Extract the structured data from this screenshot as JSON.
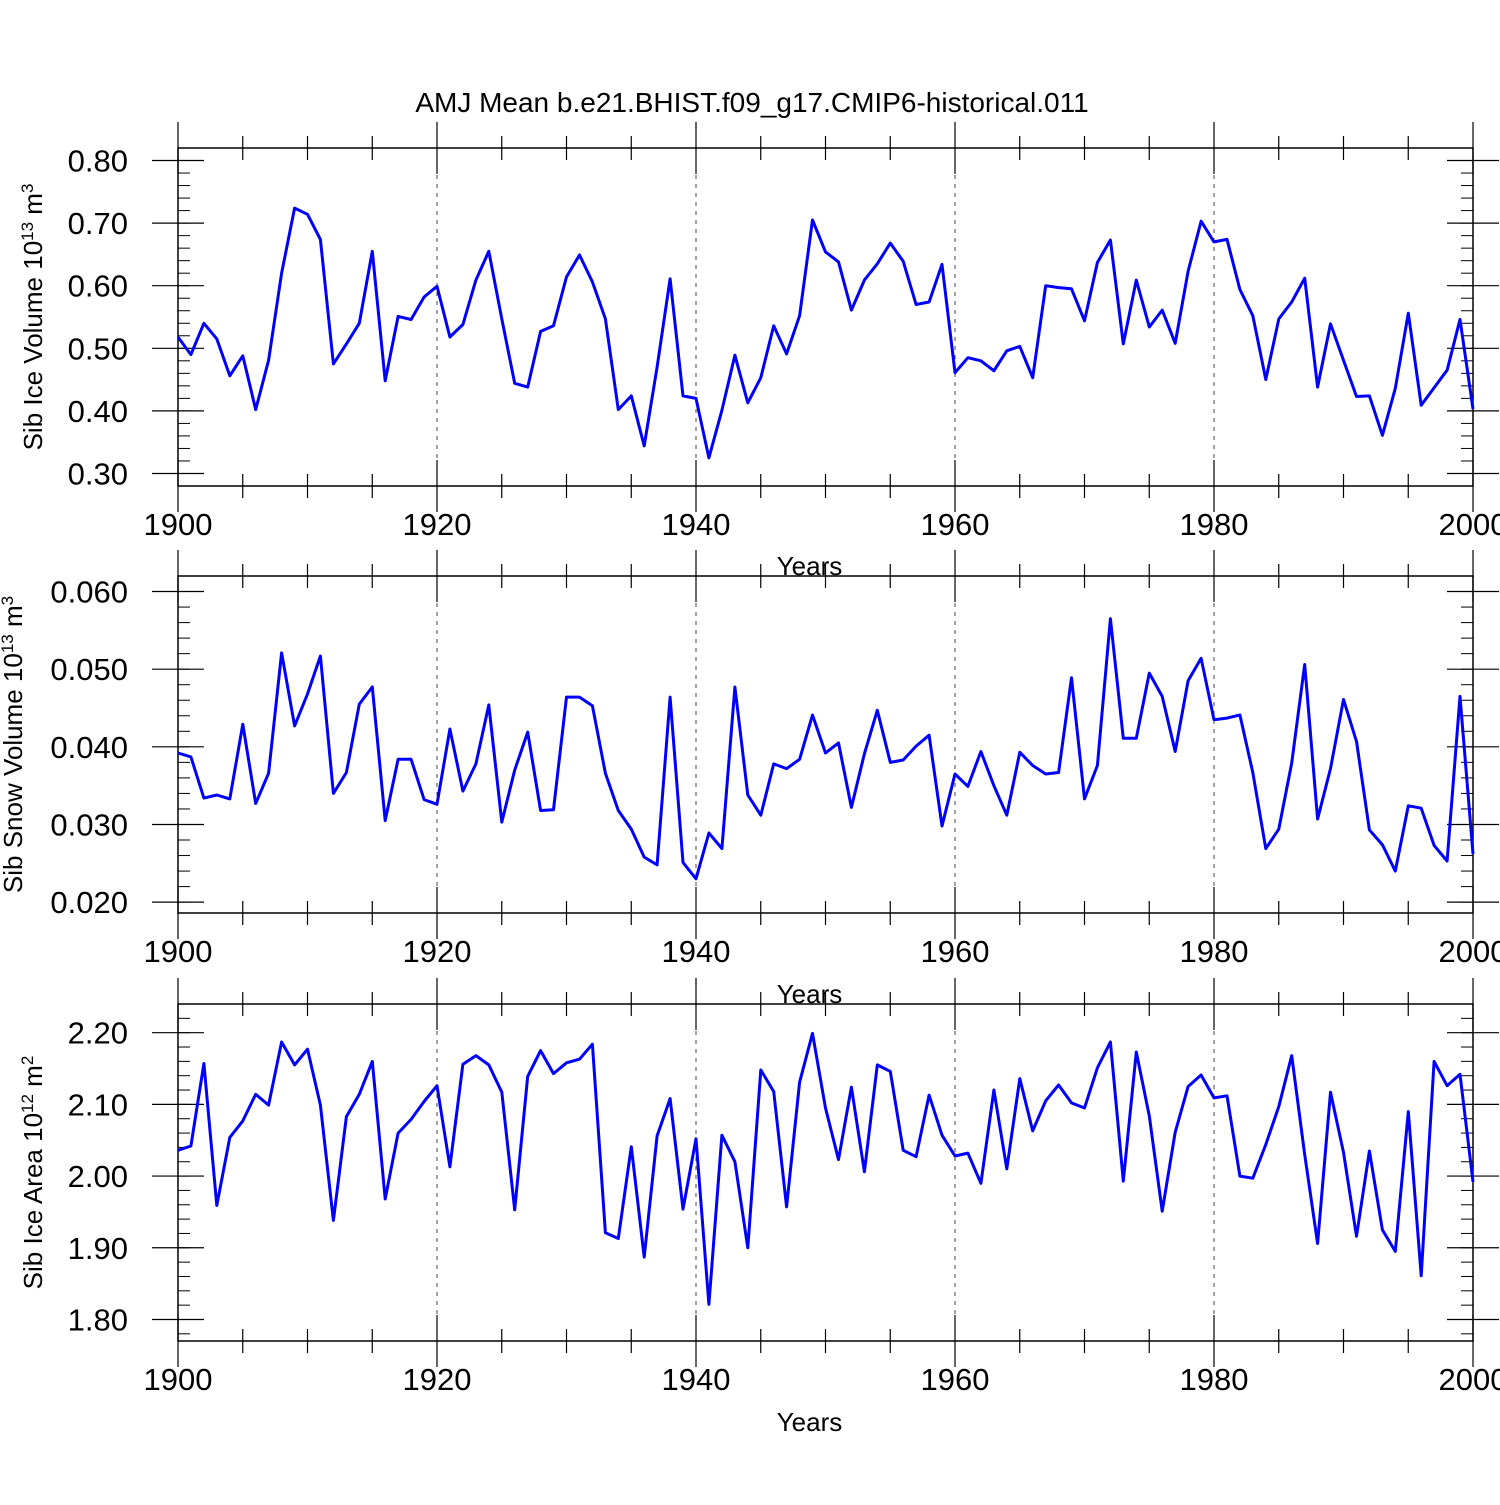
{
  "title": "AMJ Mean b.e21.BHIST.f09_g17.CMIP6-historical.011",
  "line_color": "#0000ff",
  "chart_data": [
    {
      "type": "line",
      "xlabel": "Years",
      "ylabel": "Sib Ice Volume 10",
      "ylabel_exp": "13",
      "ylabel_unit": " m",
      "ylabel_unit_exp": "3",
      "xlim": [
        1900,
        2000
      ],
      "ylim": [
        0.28,
        0.82
      ],
      "x_ticks": [
        1900,
        1920,
        1940,
        1960,
        1980,
        2000
      ],
      "x_tick_labels": [
        "1900",
        "1920",
        "1940",
        "1960",
        "1980",
        "2000"
      ],
      "y_ticks": [
        0.3,
        0.4,
        0.5,
        0.6,
        0.7,
        0.8
      ],
      "y_tick_labels": [
        "0.30",
        "0.40",
        "0.50",
        "0.60",
        "0.70",
        "0.80"
      ],
      "grid": "vertical dashed at labeled years",
      "series": [
        {
          "x_start": 1900,
          "values": [
            0.518,
            0.49,
            0.54,
            0.515,
            0.456,
            0.488,
            0.402,
            0.481,
            0.62,
            0.724,
            0.714,
            0.674,
            0.475,
            0.507,
            0.54,
            0.655,
            0.448,
            0.551,
            0.546,
            0.582,
            0.599,
            0.518,
            0.538,
            0.609,
            0.655,
            0.547,
            0.444,
            0.438,
            0.527,
            0.536,
            0.614,
            0.649,
            0.606,
            0.547,
            0.402,
            0.424,
            0.344,
            0.47,
            0.611,
            0.424,
            0.42,
            0.325,
            0.401,
            0.489,
            0.413,
            0.453,
            0.536,
            0.491,
            0.552,
            0.705,
            0.654,
            0.638,
            0.561,
            0.609,
            0.635,
            0.668,
            0.639,
            0.57,
            0.574,
            0.634,
            0.461,
            0.485,
            0.48,
            0.464,
            0.496,
            0.503,
            0.453,
            0.6,
            0.597,
            0.595,
            0.544,
            0.637,
            0.673,
            0.507,
            0.609,
            0.534,
            0.561,
            0.508,
            0.623,
            0.703,
            0.67,
            0.674,
            0.594,
            0.552,
            0.45,
            0.547,
            0.574,
            0.612,
            0.438,
            0.539,
            0.481,
            0.423,
            0.424,
            0.361,
            0.436,
            0.556,
            0.409,
            0.437,
            0.465,
            0.546,
            0.403
          ]
        }
      ]
    },
    {
      "type": "line",
      "xlabel": "Years",
      "ylabel": "Sib Snow Volume 10",
      "ylabel_exp": "13",
      "ylabel_unit": " m",
      "ylabel_unit_exp": "3",
      "xlim": [
        1900,
        2000
      ],
      "ylim": [
        0.0186,
        0.062
      ],
      "x_ticks": [
        1900,
        1920,
        1940,
        1960,
        1980,
        2000
      ],
      "x_tick_labels": [
        "1900",
        "1920",
        "1940",
        "1960",
        "1980",
        "2000"
      ],
      "y_ticks": [
        0.02,
        0.03,
        0.04,
        0.05,
        0.06
      ],
      "y_tick_labels": [
        "0.020",
        "0.030",
        "0.040",
        "0.050",
        "0.060"
      ],
      "grid": "vertical dashed at labeled years",
      "series": [
        {
          "x_start": 1900,
          "values": [
            0.0392,
            0.0387,
            0.0334,
            0.0338,
            0.0333,
            0.0429,
            0.0327,
            0.0366,
            0.0521,
            0.0427,
            0.0468,
            0.0517,
            0.034,
            0.0367,
            0.0455,
            0.0477,
            0.0305,
            0.0384,
            0.0384,
            0.0332,
            0.0326,
            0.0423,
            0.0343,
            0.0378,
            0.0454,
            0.0303,
            0.037,
            0.0419,
            0.0318,
            0.0319,
            0.0464,
            0.0464,
            0.0453,
            0.0366,
            0.0318,
            0.0294,
            0.0258,
            0.0248,
            0.0464,
            0.0251,
            0.023,
            0.0289,
            0.0269,
            0.0477,
            0.0338,
            0.0312,
            0.0378,
            0.0372,
            0.0384,
            0.0441,
            0.0392,
            0.0405,
            0.0322,
            0.0391,
            0.0447,
            0.038,
            0.0383,
            0.0401,
            0.0415,
            0.0298,
            0.0365,
            0.0349,
            0.0394,
            0.035,
            0.0312,
            0.0393,
            0.0376,
            0.0365,
            0.0367,
            0.0489,
            0.0333,
            0.0376,
            0.0565,
            0.0411,
            0.0411,
            0.0495,
            0.0465,
            0.0394,
            0.0485,
            0.0514,
            0.0435,
            0.0437,
            0.0441,
            0.0367,
            0.0269,
            0.0294,
            0.0379,
            0.0506,
            0.0307,
            0.0372,
            0.0461,
            0.0407,
            0.0293,
            0.0274,
            0.024,
            0.0324,
            0.0321,
            0.0273,
            0.0253,
            0.0465,
            0.0262
          ]
        }
      ]
    },
    {
      "type": "line",
      "xlabel": "Years",
      "ylabel": "Sib Ice Area 10",
      "ylabel_exp": "12",
      "ylabel_unit": " m",
      "ylabel_unit_exp": "2",
      "xlim": [
        1900,
        2000
      ],
      "ylim": [
        1.77,
        2.24
      ],
      "x_ticks": [
        1900,
        1920,
        1940,
        1960,
        1980,
        2000
      ],
      "x_tick_labels": [
        "1900",
        "1920",
        "1940",
        "1960",
        "1980",
        "2000"
      ],
      "y_ticks": [
        1.8,
        1.9,
        2.0,
        2.1,
        2.2
      ],
      "y_tick_labels": [
        "1.80",
        "1.90",
        "2.00",
        "2.10",
        "2.20"
      ],
      "grid": "vertical dashed at labeled years",
      "series": [
        {
          "x_start": 1900,
          "values": [
            2.036,
            2.042,
            2.157,
            1.959,
            2.054,
            2.077,
            2.114,
            2.099,
            2.187,
            2.155,
            2.177,
            2.099,
            1.938,
            2.083,
            2.114,
            2.16,
            1.968,
            2.06,
            2.079,
            2.104,
            2.126,
            2.013,
            2.156,
            2.168,
            2.155,
            2.117,
            1.953,
            2.139,
            2.175,
            2.143,
            2.158,
            2.163,
            2.184,
            1.921,
            1.913,
            2.041,
            1.887,
            2.056,
            2.108,
            1.954,
            2.052,
            1.821,
            2.057,
            2.02,
            1.9,
            2.148,
            2.118,
            1.957,
            2.131,
            2.199,
            2.095,
            2.023,
            2.124,
            2.006,
            2.155,
            2.146,
            2.036,
            2.027,
            2.113,
            2.057,
            2.028,
            2.032,
            1.99,
            2.12,
            2.01,
            2.136,
            2.063,
            2.105,
            2.127,
            2.102,
            2.095,
            2.151,
            2.187,
            1.993,
            2.173,
            2.084,
            1.951,
            2.061,
            2.125,
            2.141,
            2.109,
            2.112,
            2.0,
            1.997,
            2.044,
            2.097,
            2.168,
            2.03,
            1.906,
            2.117,
            2.033,
            1.916,
            2.035,
            1.925,
            1.895,
            2.09,
            1.861,
            2.16,
            2.126,
            2.142,
            1.992
          ]
        }
      ]
    }
  ]
}
